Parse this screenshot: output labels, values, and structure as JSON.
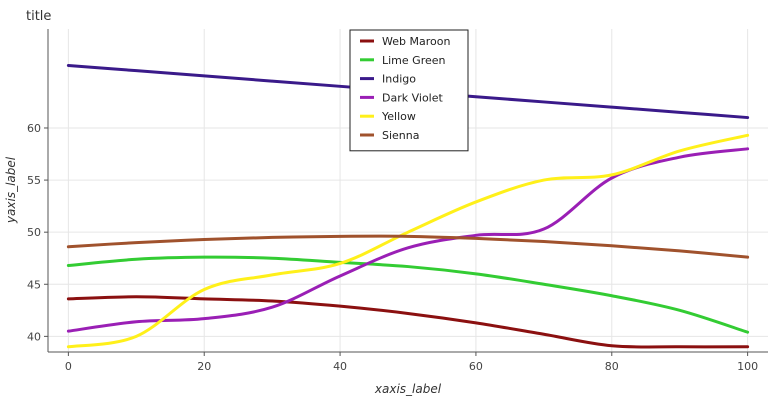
{
  "chart_data": {
    "type": "line",
    "title": "title",
    "xlabel": "xaxis_label",
    "ylabel": "yaxis_label",
    "xlim": [
      -3,
      103
    ],
    "ylim": [
      38.5,
      69.5
    ],
    "xticks": [
      0,
      20,
      40,
      60,
      80,
      100
    ],
    "yticks": [
      40,
      45,
      50,
      55,
      60
    ],
    "grid": true,
    "legend_position": "top-center",
    "x": [
      0,
      10,
      20,
      30,
      40,
      50,
      60,
      70,
      80,
      90,
      100
    ],
    "series": [
      {
        "name": "Web Maroon",
        "color": "#8B1010",
        "values": [
          43.6,
          43.8,
          43.6,
          43.4,
          42.9,
          42.2,
          41.3,
          40.2,
          39.1,
          39.0,
          39.0
        ]
      },
      {
        "name": "Lime Green",
        "color": "#33CC33",
        "values": [
          46.8,
          47.4,
          47.6,
          47.5,
          47.1,
          46.7,
          46.0,
          45.0,
          43.9,
          42.5,
          40.4
        ]
      },
      {
        "name": "Indigo",
        "color": "#3A1A8A",
        "values": [
          66.0,
          65.5,
          65.0,
          64.5,
          64.0,
          63.5,
          63.0,
          62.5,
          62.0,
          61.5,
          61.0
        ]
      },
      {
        "name": "Dark Violet",
        "color": "#9A1FB5",
        "values": [
          40.5,
          41.4,
          41.7,
          42.8,
          45.8,
          48.5,
          49.7,
          50.3,
          55.2,
          57.2,
          58.0
        ]
      },
      {
        "name": "Yellow",
        "color": "#FFF01A",
        "values": [
          39.0,
          40.0,
          44.5,
          45.9,
          47.0,
          50.0,
          52.9,
          55.0,
          55.5,
          57.8,
          59.3
        ]
      },
      {
        "name": "Sienna",
        "color": "#A0522D",
        "values": [
          48.6,
          49.0,
          49.3,
          49.5,
          49.6,
          49.6,
          49.4,
          49.1,
          48.7,
          48.2,
          47.6
        ]
      }
    ]
  }
}
